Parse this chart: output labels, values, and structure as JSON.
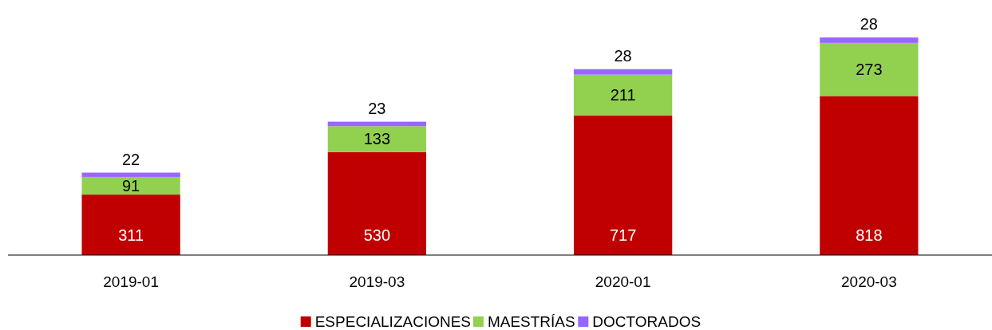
{
  "chart_data": {
    "type": "bar",
    "stacked": true,
    "data_labels": true,
    "legend": "bottom",
    "categories": [
      "2019-01",
      "2019-03",
      "2020-01",
      "2020-03"
    ],
    "series": [
      {
        "name": "ESPECIALIZACIONES",
        "color": "#c00000",
        "values": [
          311,
          530,
          717,
          818
        ]
      },
      {
        "name": "MAESTRÍAS",
        "color": "#92d050",
        "values": [
          91,
          133,
          211,
          273
        ]
      },
      {
        "name": "DOCTORADOS",
        "color": "#9966ff",
        "values": [
          22,
          23,
          28,
          28
        ]
      }
    ]
  }
}
